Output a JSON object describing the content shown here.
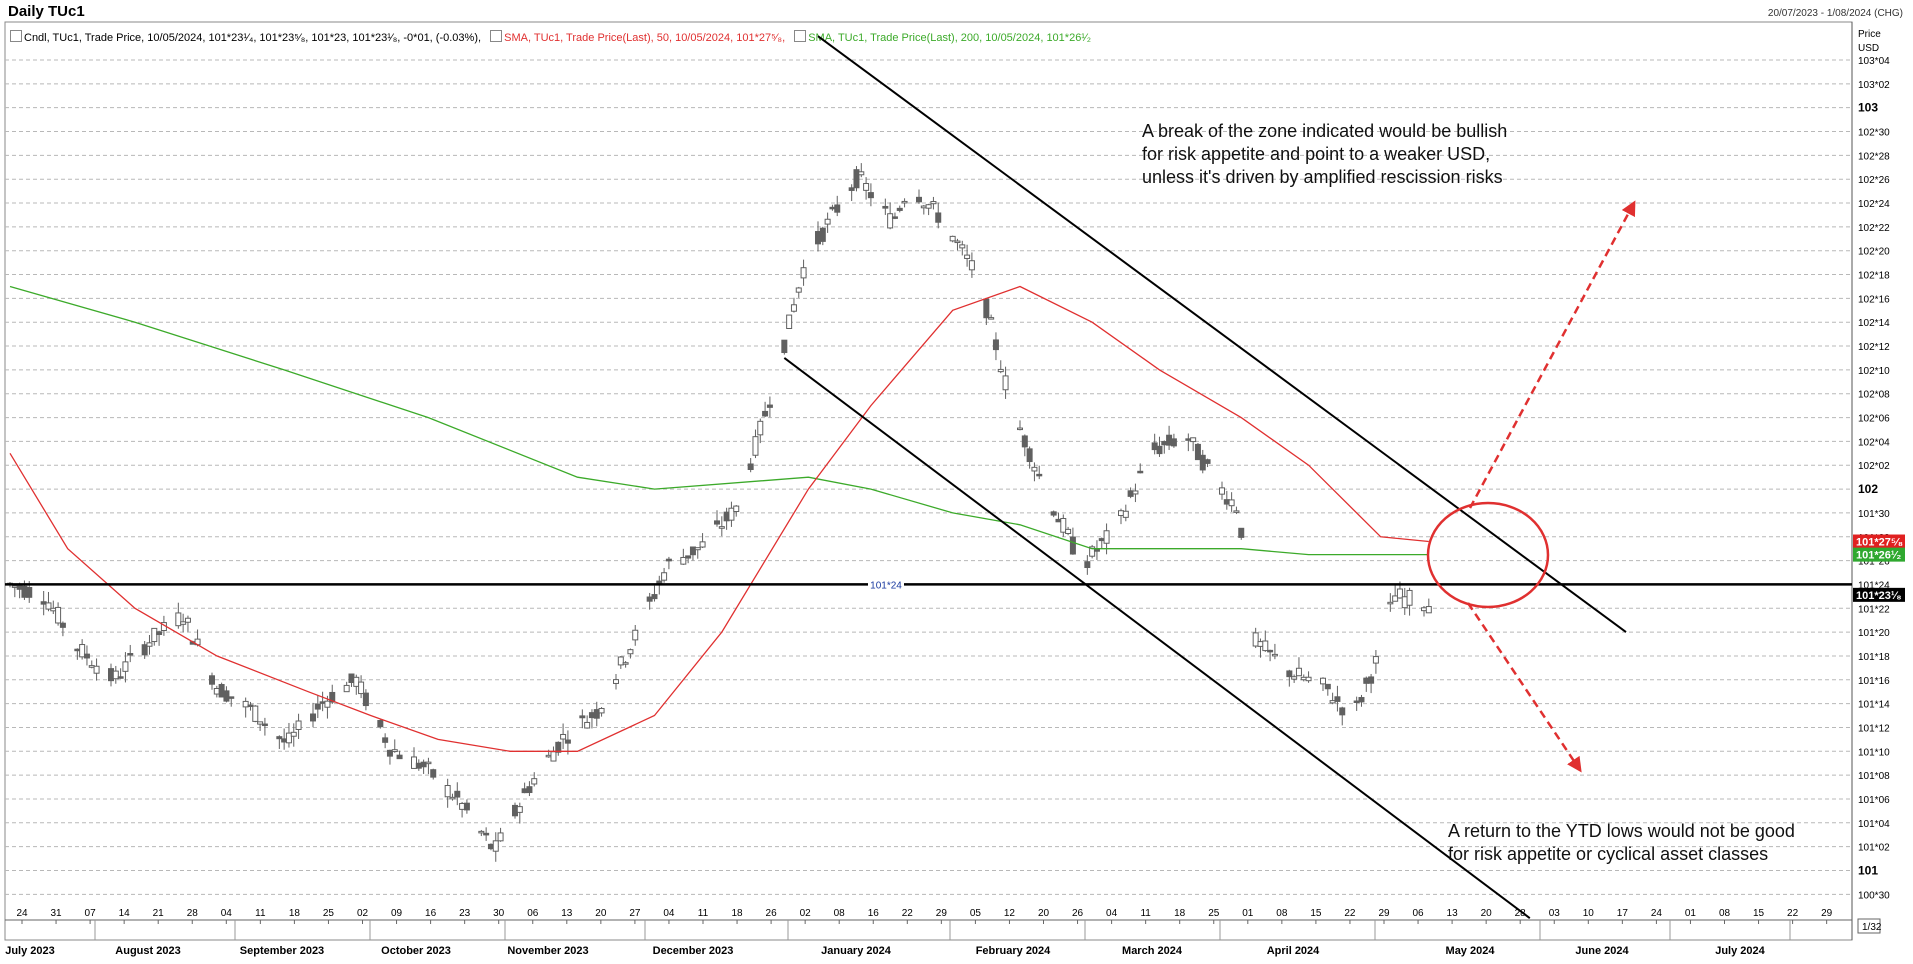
{
  "header": {
    "title": "Daily TUc1",
    "date_range": "20/07/2023 - 1/08/2024 (CHG)"
  },
  "legend": {
    "candle": "Cndl, TUc1, Trade Price, 10/05/2024, 101*23¹⁄₄, 101*23⁵⁄₈, 101*23, 101*23¹⁄₈, -0*01, (-0.03%),",
    "sma50": "SMA, TUc1, Trade Price(Last), 50, 10/05/2024, 101*27⁵⁄₈,",
    "sma200": "SMA, TUc1, Trade Price(Last), 200, 10/05/2024, 101*26¹⁄₂"
  },
  "axis": {
    "price_label": "Price",
    "currency_label": "USD",
    "scale_label": "1/32"
  },
  "annotations": {
    "top": [
      "A break of the zone indicated would be bullish",
      "for risk appetite and point to a weaker USD,",
      "unless it's driven by amplified rescission risks"
    ],
    "bottom": [
      "A return to the YTD lows would not be good",
      "for risk appetite or cyclical asset classes"
    ]
  },
  "colors": {
    "sma50": "#e03030",
    "sma200": "#3caa2a",
    "candle": "#606060",
    "trend": "#000000",
    "arrow": "#e03030"
  },
  "chart_data": {
    "type": "candlestick",
    "price_unit": "32nds",
    "y_ticks": [
      "103*04",
      "103*02",
      "103",
      "102*30",
      "102*28",
      "102*26",
      "102*24",
      "102*22",
      "102*20",
      "102*18",
      "102*16",
      "102*14",
      "102*12",
      "102*10",
      "102*08",
      "102*06",
      "102*04",
      "102*02",
      "102",
      "101*30",
      "101*28",
      "101*26",
      "101*24",
      "101*22",
      "101*20",
      "101*18",
      "101*16",
      "101*14",
      "101*12",
      "101*10",
      "101*08",
      "101*06",
      "101*04",
      "101*02",
      "101",
      "100*30"
    ],
    "ylim": [
      "100*29",
      "103*05.5"
    ],
    "x_day_ticks": [
      "24",
      "31",
      "07",
      "14",
      "21",
      "28",
      "04",
      "11",
      "18",
      "25",
      "02",
      "09",
      "16",
      "23",
      "30",
      "06",
      "13",
      "20",
      "27",
      "04",
      "11",
      "18",
      "26",
      "02",
      "08",
      "16",
      "22",
      "29",
      "05",
      "12",
      "20",
      "26",
      "04",
      "11",
      "18",
      "25",
      "01",
      "08",
      "15",
      "22",
      "29",
      "06",
      "13",
      "20",
      "28",
      "03",
      "10",
      "17",
      "24",
      "01",
      "08",
      "15",
      "22",
      "29"
    ],
    "x_month_labels": [
      "July 2023",
      "August 2023",
      "September 2023",
      "October 2023",
      "November 2023",
      "December 2023",
      "January 2024",
      "February 2024",
      "March 2024",
      "April 2024",
      "May 2024",
      "June 2024",
      "July 2024"
    ],
    "horizontal_level": {
      "value": "101*24",
      "label": "101*24"
    },
    "last_price_tags": [
      {
        "label": "101*27⁵⁄₈",
        "series": "SMA 50"
      },
      {
        "label": "101*26¹⁄₂",
        "series": "SMA 200"
      },
      {
        "label": "101*23¹⁄₈",
        "series": "Cndl"
      }
    ],
    "sma50_values": [
      [
        "2023-07-20",
        "102*03"
      ],
      [
        "2023-08-01",
        "101*27"
      ],
      [
        "2023-08-15",
        "101*22"
      ],
      [
        "2023-09-01",
        "101*18"
      ],
      [
        "2023-09-20",
        "101*15"
      ],
      [
        "2023-10-03",
        "101*13"
      ],
      [
        "2023-10-17",
        "101*11"
      ],
      [
        "2023-11-01",
        "101*10"
      ],
      [
        "2023-11-15",
        "101*10"
      ],
      [
        "2023-12-01",
        "101*13"
      ],
      [
        "2023-12-15",
        "101*20"
      ],
      [
        "2024-01-02",
        "102*00"
      ],
      [
        "2024-01-15",
        "102*07"
      ],
      [
        "2024-02-01",
        "102*15"
      ],
      [
        "2024-02-15",
        "102*17"
      ],
      [
        "2024-03-01",
        "102*14"
      ],
      [
        "2024-03-15",
        "102*10"
      ],
      [
        "2024-04-01",
        "102*06"
      ],
      [
        "2024-04-15",
        "102*02"
      ],
      [
        "2024-04-30",
        "101*28"
      ],
      [
        "2024-05-10",
        "101*27.6"
      ]
    ],
    "sma200_values": [
      [
        "2023-07-20",
        "102*17"
      ],
      [
        "2023-08-15",
        "102*14"
      ],
      [
        "2023-09-15",
        "102*10"
      ],
      [
        "2023-10-15",
        "102*06"
      ],
      [
        "2023-11-15",
        "102*01"
      ],
      [
        "2023-12-01",
        "102*00"
      ],
      [
        "2024-01-02",
        "102*01"
      ],
      [
        "2024-01-15",
        "102*00"
      ],
      [
        "2024-02-01",
        "101*30"
      ],
      [
        "2024-02-15",
        "101*29"
      ],
      [
        "2024-03-01",
        "101*27"
      ],
      [
        "2024-03-15",
        "101*27"
      ],
      [
        "2024-04-01",
        "101*27"
      ],
      [
        "2024-04-15",
        "101*26.5"
      ],
      [
        "2024-05-10",
        "101*26.5"
      ]
    ],
    "trend_lines": [
      {
        "name": "upper",
        "from": [
          "2024-01-04",
          "103*06"
        ],
        "to": [
          "2024-06-20",
          "101*20"
        ]
      },
      {
        "name": "lower",
        "from": [
          "2023-12-28",
          "102*11"
        ],
        "to": [
          "2024-05-31",
          "100*28"
        ]
      }
    ]
  }
}
